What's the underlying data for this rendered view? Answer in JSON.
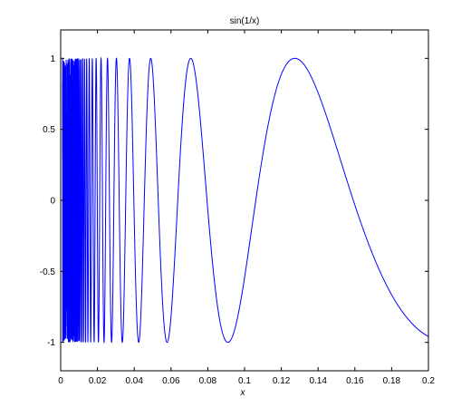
{
  "chart_data": {
    "type": "line",
    "title": "sin(1/x)",
    "xlabel": "x",
    "ylabel": "",
    "xlim": [
      0,
      0.2
    ],
    "ylim": [
      -1.2,
      1.2
    ],
    "grid": false,
    "x_ticks": [
      0,
      0.02,
      0.04,
      0.06,
      0.08,
      0.1,
      0.12,
      0.14,
      0.16,
      0.18,
      0.2
    ],
    "x_tick_labels": [
      "0",
      "0.02",
      "0.04",
      "0.06",
      "0.08",
      "0.1",
      "0.12",
      "0.14",
      "0.16",
      "0.18",
      "0.2"
    ],
    "y_ticks": [
      1,
      0.5,
      0,
      -0.5,
      -1
    ],
    "y_tick_labels": [
      "1",
      "0.5",
      "0",
      "-0.5",
      "-1"
    ],
    "series": [
      {
        "function": "sin(1/x)",
        "x_range": [
          0.001,
          0.2
        ],
        "color": "#0000ff"
      }
    ]
  }
}
